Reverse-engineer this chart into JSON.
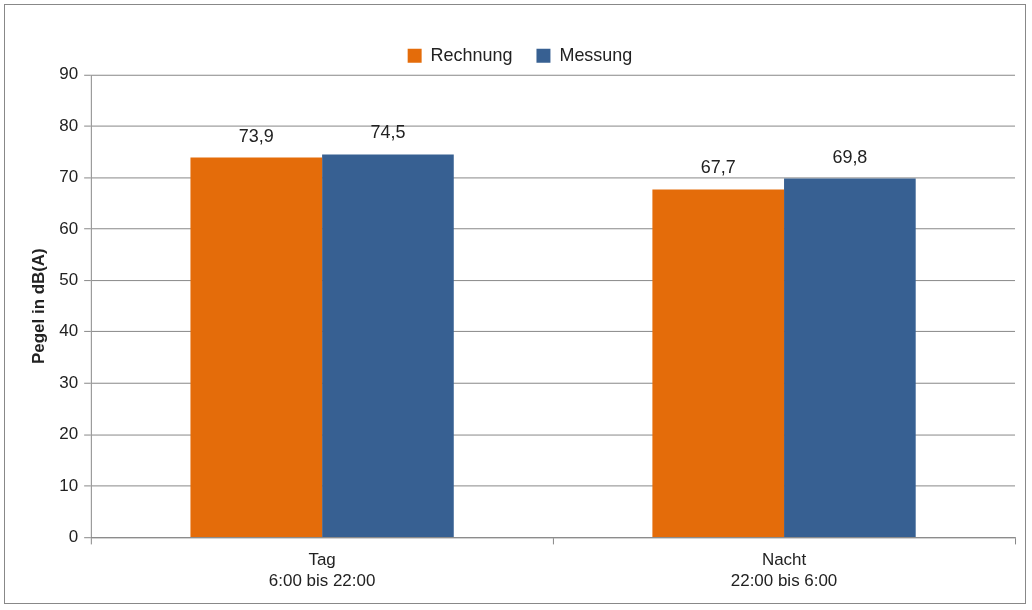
{
  "chart_data": {
    "type": "bar",
    "ylabel": "Pegel in dB(A)",
    "categories": [
      "Tag\n6:00 bis 22:00",
      "Nacht\n22:00 bis 6:00"
    ],
    "series": [
      {
        "name": "Rechnung",
        "color": "#e46c0a",
        "values": [
          73.9,
          67.7
        ],
        "value_labels": [
          "73,9",
          "67,7"
        ]
      },
      {
        "name": "Messung",
        "color": "#376092",
        "values": [
          74.5,
          69.8
        ],
        "value_labels": [
          "74,5",
          "69,8"
        ]
      }
    ],
    "ylim": [
      0,
      90
    ],
    "yticks": [
      0,
      10,
      20,
      30,
      40,
      50,
      60,
      70,
      80,
      90
    ],
    "grid": "y",
    "legend": "top"
  }
}
